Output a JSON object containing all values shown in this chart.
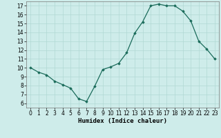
{
  "x": [
    0,
    1,
    2,
    3,
    4,
    5,
    6,
    7,
    8,
    9,
    10,
    11,
    12,
    13,
    14,
    15,
    16,
    17,
    18,
    19,
    20,
    21,
    22,
    23
  ],
  "y": [
    10,
    9.5,
    9.2,
    8.5,
    8.1,
    7.7,
    6.5,
    6.2,
    7.9,
    9.8,
    10.1,
    10.5,
    11.7,
    13.9,
    15.2,
    17.0,
    17.2,
    17.0,
    17.0,
    16.4,
    15.3,
    13.0,
    12.1,
    11.0
  ],
  "xlabel": "Humidex (Indice chaleur)",
  "xlim": [
    -0.5,
    23.5
  ],
  "ylim": [
    5.5,
    17.5
  ],
  "yticks": [
    6,
    7,
    8,
    9,
    10,
    11,
    12,
    13,
    14,
    15,
    16,
    17
  ],
  "xticks": [
    0,
    1,
    2,
    3,
    4,
    5,
    6,
    7,
    8,
    9,
    10,
    11,
    12,
    13,
    14,
    15,
    16,
    17,
    18,
    19,
    20,
    21,
    22,
    23
  ],
  "line_color": "#1a6b5a",
  "marker": "D",
  "marker_size": 1.8,
  "bg_color": "#ceecea",
  "grid_color": "#b0d8d4",
  "label_fontsize": 6.5,
  "tick_fontsize": 5.5
}
